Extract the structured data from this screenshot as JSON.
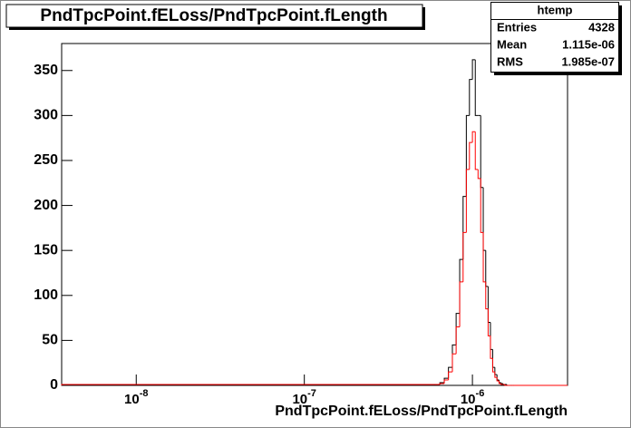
{
  "chart_data": {
    "type": "histogram",
    "title": "PndTpcPoint.fELoss/PndTpcPoint.fLength",
    "x_label": "PndTpcPoint.fELoss/PndTpcPoint.fLength",
    "log_x": true,
    "bins": [
      3.6e-09,
      6e-07,
      6.4e-07,
      6.8e-07,
      7.2e-07,
      7.6e-07,
      8e-07,
      8.4e-07,
      8.8e-07,
      9.2e-07,
      9.6e-07,
      1e-06,
      1.04e-06,
      1.08e-06,
      1.12e-06,
      1.16e-06,
      1.2e-06,
      1.24e-06,
      1.28e-06,
      1.32e-06,
      1.36e-06,
      1.4e-06,
      1.44e-06,
      1.48e-06,
      1.52e-06,
      1.56e-06,
      1.6e-06,
      1.64e-06,
      1.68e-06,
      1.72e-06,
      1.76e-06,
      3.68e-06
    ],
    "series": [
      {
        "color": "#000000",
        "values": [
          1,
          1,
          3,
          8,
          20,
          45,
          80,
          140,
          210,
          300,
          340,
          362,
          300,
          300,
          220,
          150,
          110,
          70,
          40,
          20,
          12,
          6,
          3,
          2,
          1,
          1,
          0,
          0,
          0,
          0,
          0
        ]
      },
      {
        "color": "#ff0000",
        "values": [
          1,
          1,
          2,
          6,
          15,
          35,
          65,
          115,
          170,
          240,
          270,
          282,
          240,
          230,
          170,
          115,
          85,
          55,
          30,
          15,
          9,
          5,
          2,
          1,
          1,
          0,
          0,
          0,
          0,
          0,
          0
        ]
      }
    ],
    "xlim": [
      3.6e-09,
      3.68e-06
    ],
    "xticks": [
      {
        "value": 1e-08,
        "label": "10",
        "exponent": "-8"
      },
      {
        "value": 1e-07,
        "label": "10",
        "exponent": "-7"
      },
      {
        "value": 1e-06,
        "label": "10",
        "exponent": "-6"
      }
    ],
    "ylim": [
      0,
      380
    ],
    "yticks": [
      0,
      50,
      100,
      150,
      200,
      250,
      300,
      350
    ],
    "stats": {
      "name": "htemp",
      "rows": [
        [
          "Entries",
          "4328"
        ],
        [
          "Mean",
          "1.115e-06"
        ],
        [
          "RMS",
          "1.985e-07"
        ]
      ]
    }
  }
}
